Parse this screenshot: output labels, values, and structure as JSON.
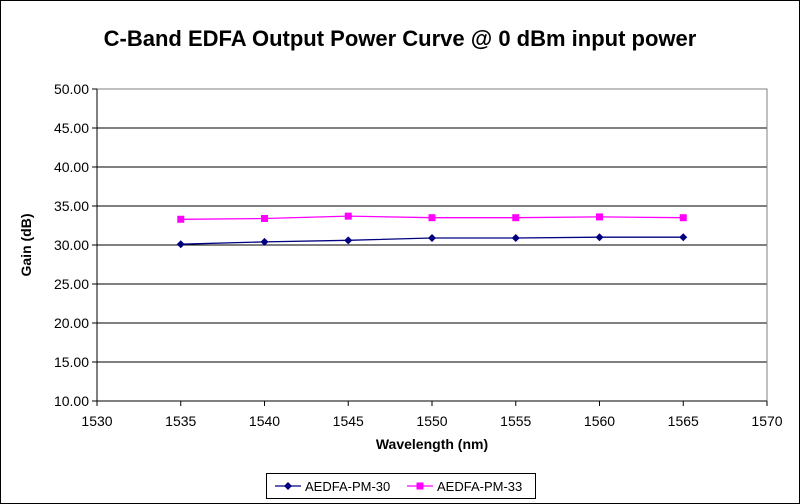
{
  "chart_data": {
    "type": "line",
    "title": "C-Band EDFA Output Power Curve @ 0 dBm input power",
    "xlabel": "Wavelength (nm)",
    "ylabel": "Gain (dB)",
    "xlim": [
      1530,
      1570
    ],
    "ylim": [
      10,
      50
    ],
    "xticks": [
      "1530",
      "1535",
      "1540",
      "1545",
      "1550",
      "1555",
      "1560",
      "1565",
      "1570"
    ],
    "yticks": [
      "10.00",
      "15.00",
      "20.00",
      "25.00",
      "30.00",
      "35.00",
      "40.00",
      "45.00",
      "50.00"
    ],
    "grid": "horizontal",
    "legend_position": "bottom",
    "x": [
      1535,
      1540,
      1545,
      1550,
      1555,
      1560,
      1565
    ],
    "series": [
      {
        "name": "AEDFA-PM-30",
        "color": "#000080",
        "marker": "diamond",
        "values": [
          30.1,
          30.4,
          30.6,
          30.9,
          30.9,
          31.0,
          31.0
        ]
      },
      {
        "name": "AEDFA-PM-33",
        "color": "#ff00ff",
        "marker": "square",
        "values": [
          33.3,
          33.4,
          33.7,
          33.5,
          33.5,
          33.6,
          33.5
        ]
      }
    ]
  }
}
